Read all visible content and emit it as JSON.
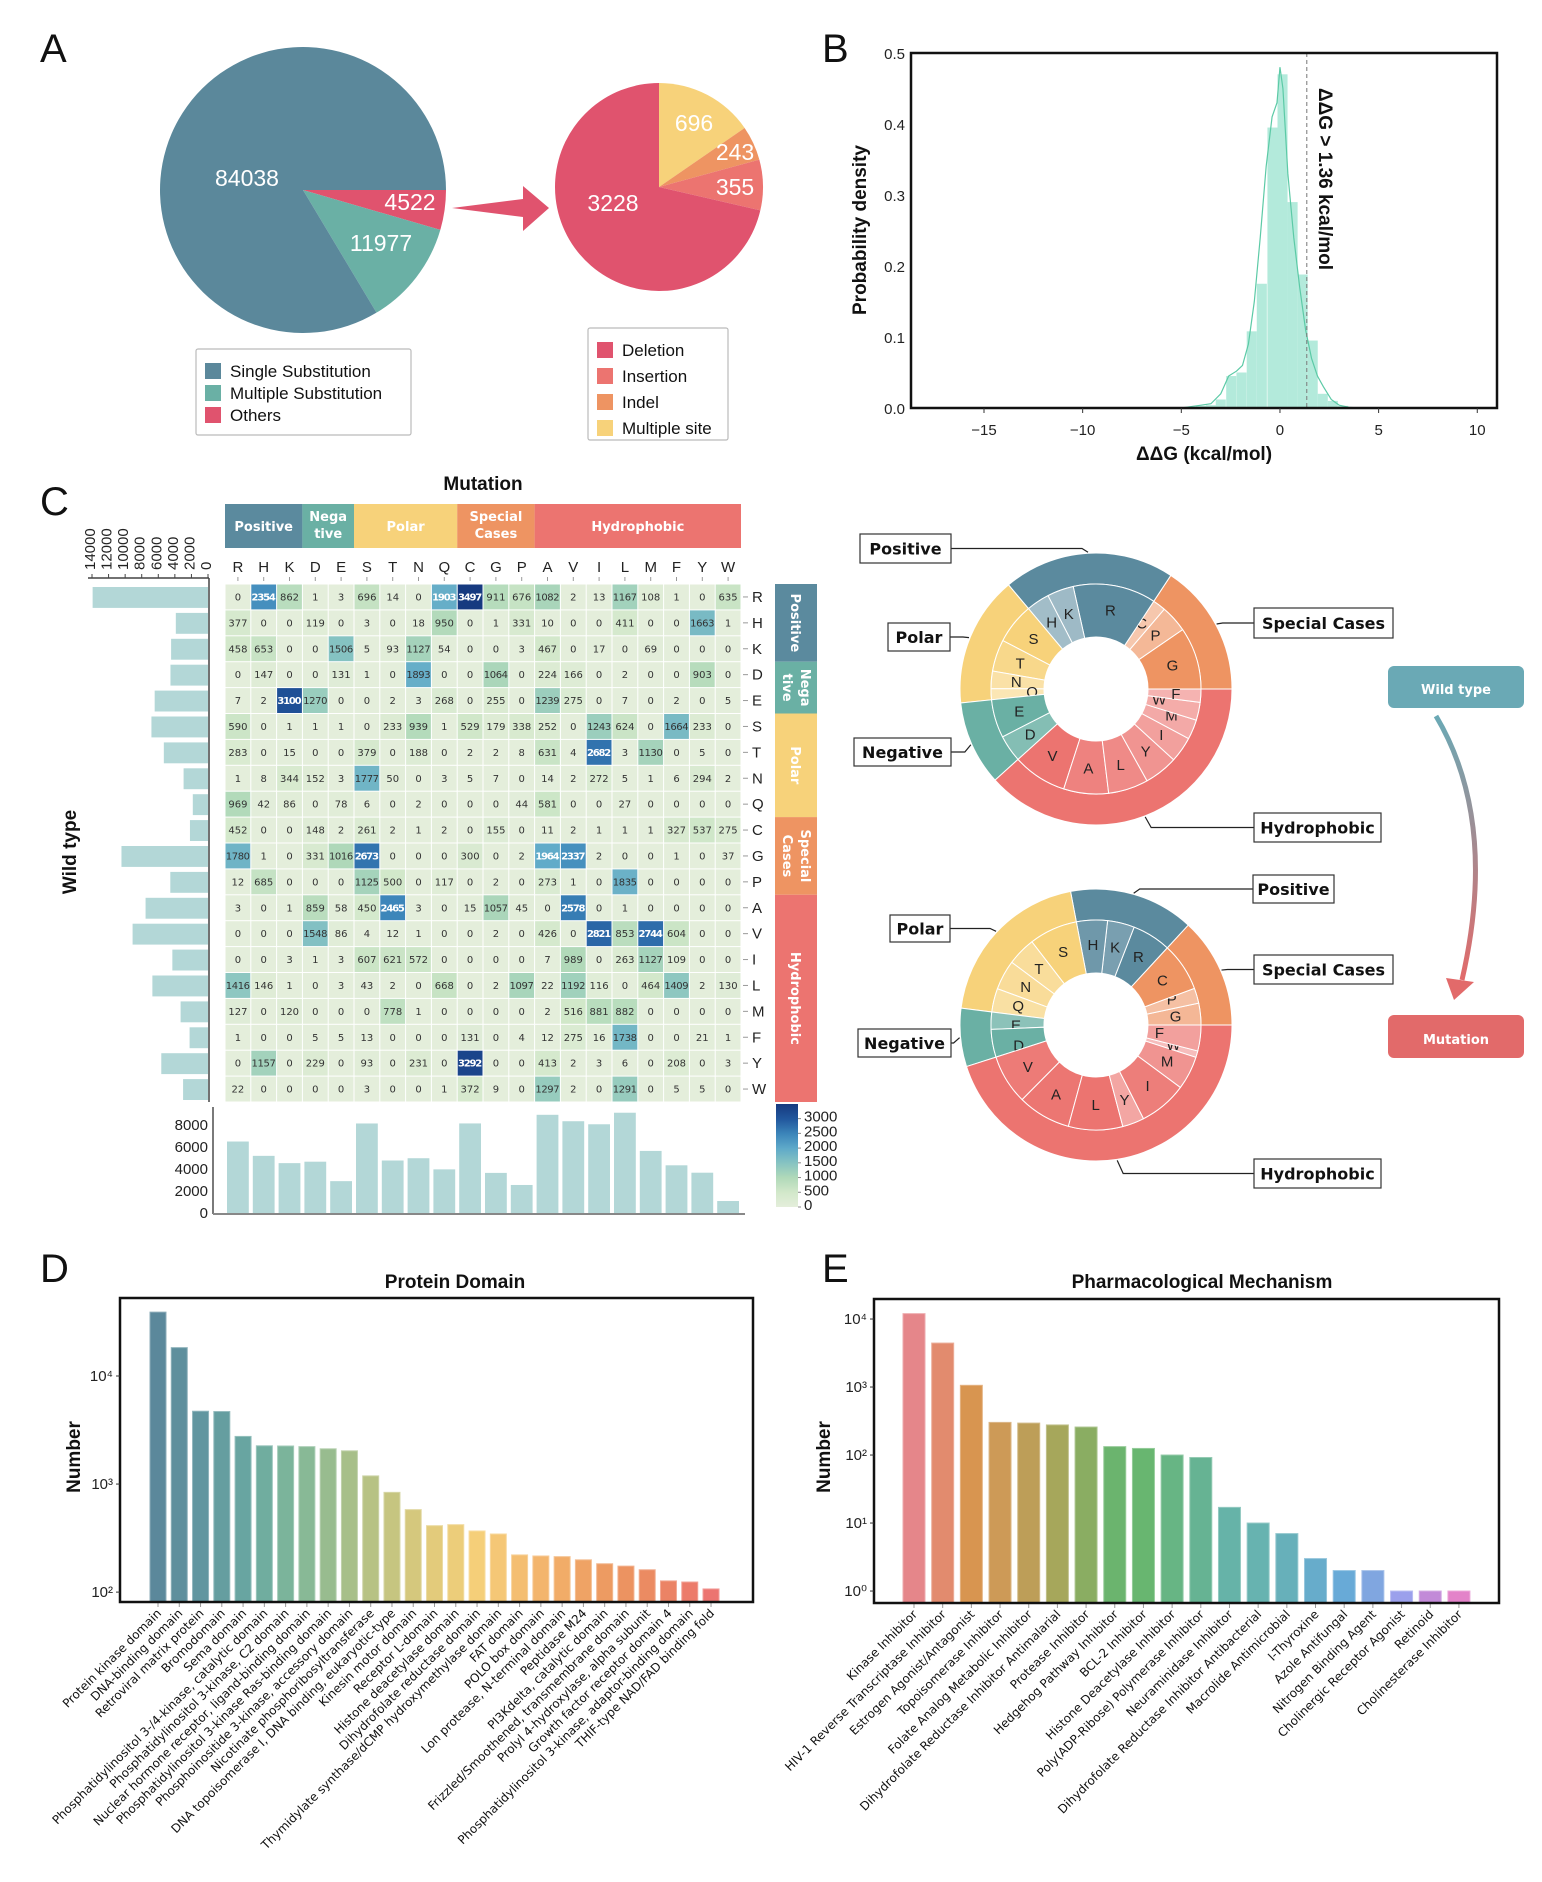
{
  "panel_labels": {
    "a": "A",
    "b": "B",
    "c": "C",
    "d": "D",
    "e": "E"
  },
  "flow": {
    "from_label": "Wild type",
    "to_label": "Mutation",
    "from_color": "#6aa9b5",
    "to_color": "#e26a6a"
  },
  "chart_data": [
    {
      "type": "pie",
      "labels": [
        "Single Substitution",
        "Multiple Substitution",
        "Others"
      ],
      "values": [
        84038,
        11977,
        4522
      ],
      "value_labels": [
        "84038",
        "11977",
        "4522"
      ],
      "colors": [
        "#5b889b",
        "#6ab0a5",
        "#e0536e"
      ],
      "legend": "bottom"
    },
    {
      "type": "pie",
      "labels": [
        "Deletion",
        "Insertion",
        "Indel",
        "Multiple site"
      ],
      "values": [
        3228,
        355,
        243,
        696
      ],
      "value_labels": [
        "3228",
        "355",
        "243",
        "696"
      ],
      "colors": [
        "#e0536e",
        "#ec7470",
        "#ee9462",
        "#f7d27a"
      ],
      "legend": "bottom"
    },
    {
      "type": "histogram",
      "xlabel": "ΔΔG (kcal/mol)",
      "ylabel": "Probability density",
      "xlim": [
        -18.7,
        11.0
      ],
      "ylim": [
        0,
        0.5
      ],
      "xticks": [
        -15,
        -10,
        -5,
        0,
        5,
        10
      ],
      "xtick_labels": [
        "−15",
        "−10",
        "−5",
        "0",
        "5",
        "10"
      ],
      "yticks": [
        0,
        0.1,
        0.2,
        0.3,
        0.4,
        0.5
      ],
      "ytick_labels": [
        "0.0",
        "0.1",
        "0.2",
        "0.3",
        "0.4",
        "0.5"
      ],
      "bin_width": 0.51,
      "bin_centers": [
        -4.5,
        -4.0,
        -3.5,
        -3.0,
        -2.47,
        -1.95,
        -1.43,
        -0.92,
        -0.38,
        0.13,
        0.64,
        1.15,
        1.66,
        2.17,
        2.68,
        3.2
      ],
      "density": [
        0.001,
        0.003,
        0.004,
        0.012,
        0.045,
        0.05,
        0.108,
        0.175,
        0.395,
        0.47,
        0.29,
        0.188,
        0.095,
        0.02,
        0.01,
        0.003
      ],
      "kde_x": [
        -5,
        -4.5,
        -4,
        -3.5,
        -3,
        -2.6,
        -2.2,
        -1.9,
        -1.6,
        -1.3,
        -1,
        -0.7,
        -0.4,
        -0.15,
        0,
        0.15,
        0.4,
        0.7,
        1.0,
        1.3,
        1.6,
        1.9,
        2.2,
        2.6,
        3.0,
        3.5,
        4
      ],
      "kde_y": [
        0,
        0.002,
        0.004,
        0.006,
        0.02,
        0.045,
        0.052,
        0.06,
        0.09,
        0.15,
        0.24,
        0.34,
        0.41,
        0.43,
        0.48,
        0.45,
        0.33,
        0.24,
        0.17,
        0.11,
        0.07,
        0.045,
        0.03,
        0.012,
        0.004,
        0.001,
        0
      ],
      "threshold": {
        "x": 1.36,
        "label": "ΔΔG > 1.36 kcal/mol"
      },
      "color": "#b3eadb",
      "line_color": "#5ccaa6"
    },
    {
      "type": "heatmap",
      "title": "Mutation",
      "ylabel": "Wild type",
      "columns": [
        "R",
        "H",
        "K",
        "D",
        "E",
        "S",
        "T",
        "N",
        "Q",
        "C",
        "G",
        "P",
        "A",
        "V",
        "I",
        "L",
        "M",
        "F",
        "Y",
        "W"
      ],
      "rows": [
        "R",
        "H",
        "K",
        "D",
        "E",
        "S",
        "T",
        "N",
        "Q",
        "C",
        "G",
        "P",
        "A",
        "V",
        "I",
        "L",
        "M",
        "F",
        "Y",
        "W"
      ],
      "groups": [
        {
          "name": "Positive",
          "label_lines": [
            "Positive"
          ],
          "count": 3,
          "color": "#5b8a9e"
        },
        {
          "name": "Negative",
          "label_lines": [
            "Nega",
            "tive"
          ],
          "count": 2,
          "color": "#6ab0a4"
        },
        {
          "name": "Polar",
          "label_lines": [
            "Polar"
          ],
          "count": 4,
          "color": "#f7d27a"
        },
        {
          "name": "Special Cases",
          "label_lines": [
            "Special",
            "Cases"
          ],
          "count": 3,
          "color": "#ee9462"
        },
        {
          "name": "Hydrophobic",
          "label_lines": [
            "Hydrophobic"
          ],
          "count": 8,
          "color": "#ec7470"
        }
      ],
      "values": [
        [
          0,
          2354,
          862,
          1,
          3,
          696,
          14,
          0,
          1903,
          3497,
          911,
          676,
          1082,
          2,
          13,
          1167,
          108,
          1,
          0,
          635
        ],
        [
          377,
          0,
          0,
          119,
          0,
          3,
          0,
          18,
          950,
          0,
          1,
          331,
          10,
          0,
          0,
          411,
          0,
          0,
          1663,
          1
        ],
        [
          458,
          653,
          0,
          0,
          1506,
          5,
          93,
          1127,
          54,
          0,
          0,
          3,
          467,
          0,
          17,
          0,
          69,
          0,
          0,
          0
        ],
        [
          0,
          147,
          0,
          0,
          131,
          1,
          0,
          1893,
          0,
          0,
          1064,
          0,
          224,
          166,
          0,
          2,
          0,
          0,
          903,
          0
        ],
        [
          7,
          2,
          3100,
          1270,
          0,
          0,
          2,
          3,
          268,
          0,
          255,
          0,
          1239,
          275,
          0,
          7,
          0,
          2,
          0,
          5
        ],
        [
          590,
          0,
          1,
          1,
          1,
          0,
          233,
          939,
          1,
          529,
          179,
          338,
          252,
          0,
          1243,
          624,
          0,
          1664,
          233,
          0
        ],
        [
          283,
          0,
          15,
          0,
          0,
          379,
          0,
          188,
          0,
          2,
          2,
          8,
          631,
          4,
          2682,
          3,
          1130,
          0,
          5,
          0
        ],
        [
          1,
          8,
          344,
          152,
          3,
          1777,
          50,
          0,
          3,
          5,
          7,
          0,
          14,
          2,
          272,
          5,
          1,
          6,
          294,
          2
        ],
        [
          969,
          42,
          86,
          0,
          78,
          6,
          0,
          2,
          0,
          0,
          0,
          44,
          581,
          0,
          0,
          27,
          0,
          0,
          0,
          0
        ],
        [
          452,
          0,
          0,
          148,
          2,
          261,
          2,
          1,
          2,
          0,
          155,
          0,
          11,
          2,
          1,
          1,
          1,
          327,
          537,
          275
        ],
        [
          1780,
          1,
          0,
          331,
          1016,
          2673,
          0,
          0,
          0,
          300,
          0,
          2,
          1964,
          2337,
          2,
          0,
          0,
          1,
          0,
          37
        ],
        [
          12,
          685,
          0,
          0,
          0,
          1125,
          500,
          0,
          117,
          0,
          2,
          0,
          273,
          1,
          0,
          1835,
          0,
          0,
          0,
          0
        ],
        [
          3,
          0,
          1,
          859,
          58,
          450,
          2465,
          3,
          0,
          15,
          1057,
          45,
          0,
          2578,
          0,
          1,
          0,
          0,
          0,
          0
        ],
        [
          0,
          0,
          0,
          1548,
          86,
          4,
          12,
          1,
          0,
          0,
          2,
          0,
          426,
          0,
          2821,
          853,
          2744,
          604,
          0,
          0
        ],
        [
          0,
          0,
          3,
          1,
          3,
          607,
          621,
          572,
          0,
          0,
          0,
          0,
          7,
          989,
          0,
          263,
          1127,
          109,
          0,
          0
        ],
        [
          1416,
          146,
          1,
          0,
          3,
          43,
          2,
          0,
          668,
          0,
          2,
          1097,
          22,
          1192,
          116,
          0,
          464,
          1409,
          2,
          130
        ],
        [
          127,
          0,
          120,
          0,
          0,
          0,
          778,
          1,
          0,
          0,
          0,
          0,
          2,
          516,
          881,
          882,
          0,
          0,
          0,
          0
        ],
        [
          1,
          0,
          0,
          5,
          5,
          13,
          0,
          0,
          0,
          131,
          0,
          4,
          12,
          275,
          16,
          1738,
          0,
          0,
          21,
          1
        ],
        [
          0,
          1157,
          0,
          229,
          0,
          93,
          0,
          231,
          0,
          3292,
          0,
          0,
          413,
          2,
          3,
          6,
          0,
          208,
          0,
          3
        ],
        [
          22,
          0,
          0,
          0,
          0,
          3,
          0,
          0,
          1,
          372,
          9,
          0,
          1297,
          2,
          0,
          1291,
          0,
          5,
          5,
          0
        ]
      ],
      "vmax": 3497,
      "colorbar_ticks": [
        0,
        500,
        1000,
        1500,
        2000,
        2500,
        3000
      ],
      "colorbar_tick_labels": [
        "0",
        "500",
        "1000",
        "1500",
        "2000",
        "2500",
        "3000"
      ],
      "row_total_ticks": [
        0,
        2000,
        4000,
        6000,
        8000,
        10000,
        12000,
        14000
      ],
      "row_total_tick_labels": [
        "0",
        "2000",
        "4000",
        "6000",
        "8000",
        "10000",
        "12000",
        "14000"
      ],
      "col_total_ticks": [
        0,
        2000,
        4000,
        6000,
        8000
      ],
      "col_total_tick_labels": [
        "0",
        "2000",
        "4000",
        "6000",
        "8000"
      ],
      "total_bar_color": "#b3d7d7"
    },
    {
      "type": "sunburst",
      "caption": "Wild type",
      "groups": [
        {
          "name": "Special Cases",
          "letters": [
            "G",
            "P",
            "C"
          ],
          "color": "#ee9462"
        },
        {
          "name": "Positive",
          "letters": [
            "R",
            "K",
            "H"
          ],
          "color": "#5b8a9e"
        },
        {
          "name": "Polar",
          "letters": [
            "S",
            "T",
            "N",
            "Q"
          ],
          "color": "#f7d27a"
        },
        {
          "name": "Negative",
          "letters": [
            "E",
            "D"
          ],
          "color": "#6ab0a4"
        },
        {
          "name": "Hydrophobic",
          "letters": [
            "V",
            "A",
            "L",
            "Y",
            "I",
            "M",
            "W",
            "F"
          ],
          "color": "#ec7470"
        }
      ]
    },
    {
      "type": "sunburst",
      "caption": "Mutation",
      "groups": [
        {
          "name": "Special Cases",
          "letters": [
            "G",
            "P",
            "C"
          ],
          "color": "#ee9462"
        },
        {
          "name": "Positive",
          "letters": [
            "R",
            "K",
            "H"
          ],
          "color": "#5b8a9e"
        },
        {
          "name": "Polar",
          "letters": [
            "S",
            "T",
            "N",
            "Q"
          ],
          "color": "#f7d27a"
        },
        {
          "name": "Negative",
          "letters": [
            "E",
            "D"
          ],
          "color": "#6ab0a4"
        },
        {
          "name": "Hydrophobic",
          "letters": [
            "V",
            "A",
            "L",
            "Y",
            "I",
            "M",
            "W",
            "F"
          ],
          "color": "#ec7470"
        }
      ]
    },
    {
      "type": "bar",
      "title": "Protein Domain",
      "ylabel": "Number",
      "yscale": "log",
      "ylim": [
        81,
        52700
      ],
      "yticks": [
        100,
        1000,
        10000
      ],
      "ytick_labels": [
        "10²",
        "10³",
        "10⁴"
      ],
      "categories": [
        "Protein kinase domain",
        "DNA-binding domain",
        "Retroviral matrix protein",
        "Bromodomain",
        "Sema domain",
        "Phosphatidylinositol 3-/4-kinase, catalytic domain",
        "Phosphatidylinositol 3-kinase, C2 domain",
        "Nuclear hormone receptor, ligand-binding domain",
        "Phosphatidylinositol 3-kinase Ras-binding domain",
        "Phosphoinositide 3-kinase, accessory domain",
        "Nicotinate phosphoribosyltransferase",
        "DNA topoisomerase I, DNA binding, eukaryotic-type",
        "Kinesin motor domain",
        "Receptor L-domain",
        "Histone deacetylase domain",
        "Dihydrofolate reductase domain",
        "Thymidylate synthase/dCMP hydroxymethylase domain",
        "FAT domain",
        "POLO box domain",
        "Lon protease, N-terminal domain",
        "Peptidase M24",
        "PI3Kdelta, catalytic domain",
        "Frizzled/Smoothened, transmembrane domain",
        "Prolyl 4-hydroxylase, alpha subunit",
        "Growth factor receptor domain 4",
        "Phosphatidylinositol 3-kinase, adaptor-binding domain",
        "THIF-type NAD/FAD binding fold"
      ],
      "values": [
        39000,
        18300,
        4720,
        4690,
        2760,
        2260,
        2250,
        2220,
        2120,
        2030,
        1190,
        838,
        580,
        412,
        421,
        368,
        345,
        221,
        216,
        213,
        199,
        183,
        174,
        161,
        127,
        124,
        107
      ],
      "palette": [
        "#5b889b",
        "#6297a0",
        "#69a8a1",
        "#80b899",
        "#a2be8b",
        "#c4c480",
        "#e3cb7b",
        "#f6cf79",
        "#f4bb70",
        "#f0a766",
        "#ec9660",
        "#eb8464",
        "#ec7470"
      ]
    },
    {
      "type": "bar",
      "title": "Pharmacological Mechanism",
      "ylabel": "Number",
      "yscale": "log",
      "ylim": [
        0.667,
        19700
      ],
      "yticks": [
        1,
        10,
        100,
        1000,
        10000
      ],
      "ytick_labels": [
        "10⁰",
        "10¹",
        "10²",
        "10³",
        "10⁴"
      ],
      "categories": [
        "Kinase Inhibitor",
        "HIV-1 Reverse Transcriptase Inhibitor",
        "Estrogen Agonist/Antagonist",
        "Topoisomerase Inhibitor",
        "Folate Analog Metabolic Inhibitor",
        "Dihydrofolate Reductase Inhibitor Antimalarial",
        "Protease Inhibitor",
        "Hedgehog Pathway Inhibitor",
        "BCL-2 Inhibitor",
        "Histone Deacetylase Inhibitor",
        "Poly(ADP-Ribose) Polymerase Inhibitor",
        "Neuraminidase Inhibitor",
        "Dihydrofolate Reductase Inhibitor Antibacterial",
        "Macrolide Antimicrobial",
        "l-Thyroxine",
        "Azole Antifungal",
        "Nitrogen Binding Agent",
        "Cholinergic Receptor Agonist",
        "Retinoid",
        "Cholinesterase Inhibitor"
      ],
      "values": [
        12000,
        4430,
        1060,
        302,
        295,
        277,
        258,
        133,
        125,
        100,
        92,
        17,
        10,
        7,
        3,
        2,
        2,
        1,
        1,
        1
      ],
      "colors": [
        "#e5868a",
        "#e28b6e",
        "#d89550",
        "#cd9a57",
        "#bd9e58",
        "#a6a75b",
        "#8aad62",
        "#6bb46e",
        "#68b670",
        "#67b584",
        "#66b393",
        "#66b3a8",
        "#67b3b0",
        "#67b0ba",
        "#67accb",
        "#68aad7",
        "#80a6e0",
        "#9ba0ec",
        "#c28ad8",
        "#e383c9"
      ]
    }
  ]
}
